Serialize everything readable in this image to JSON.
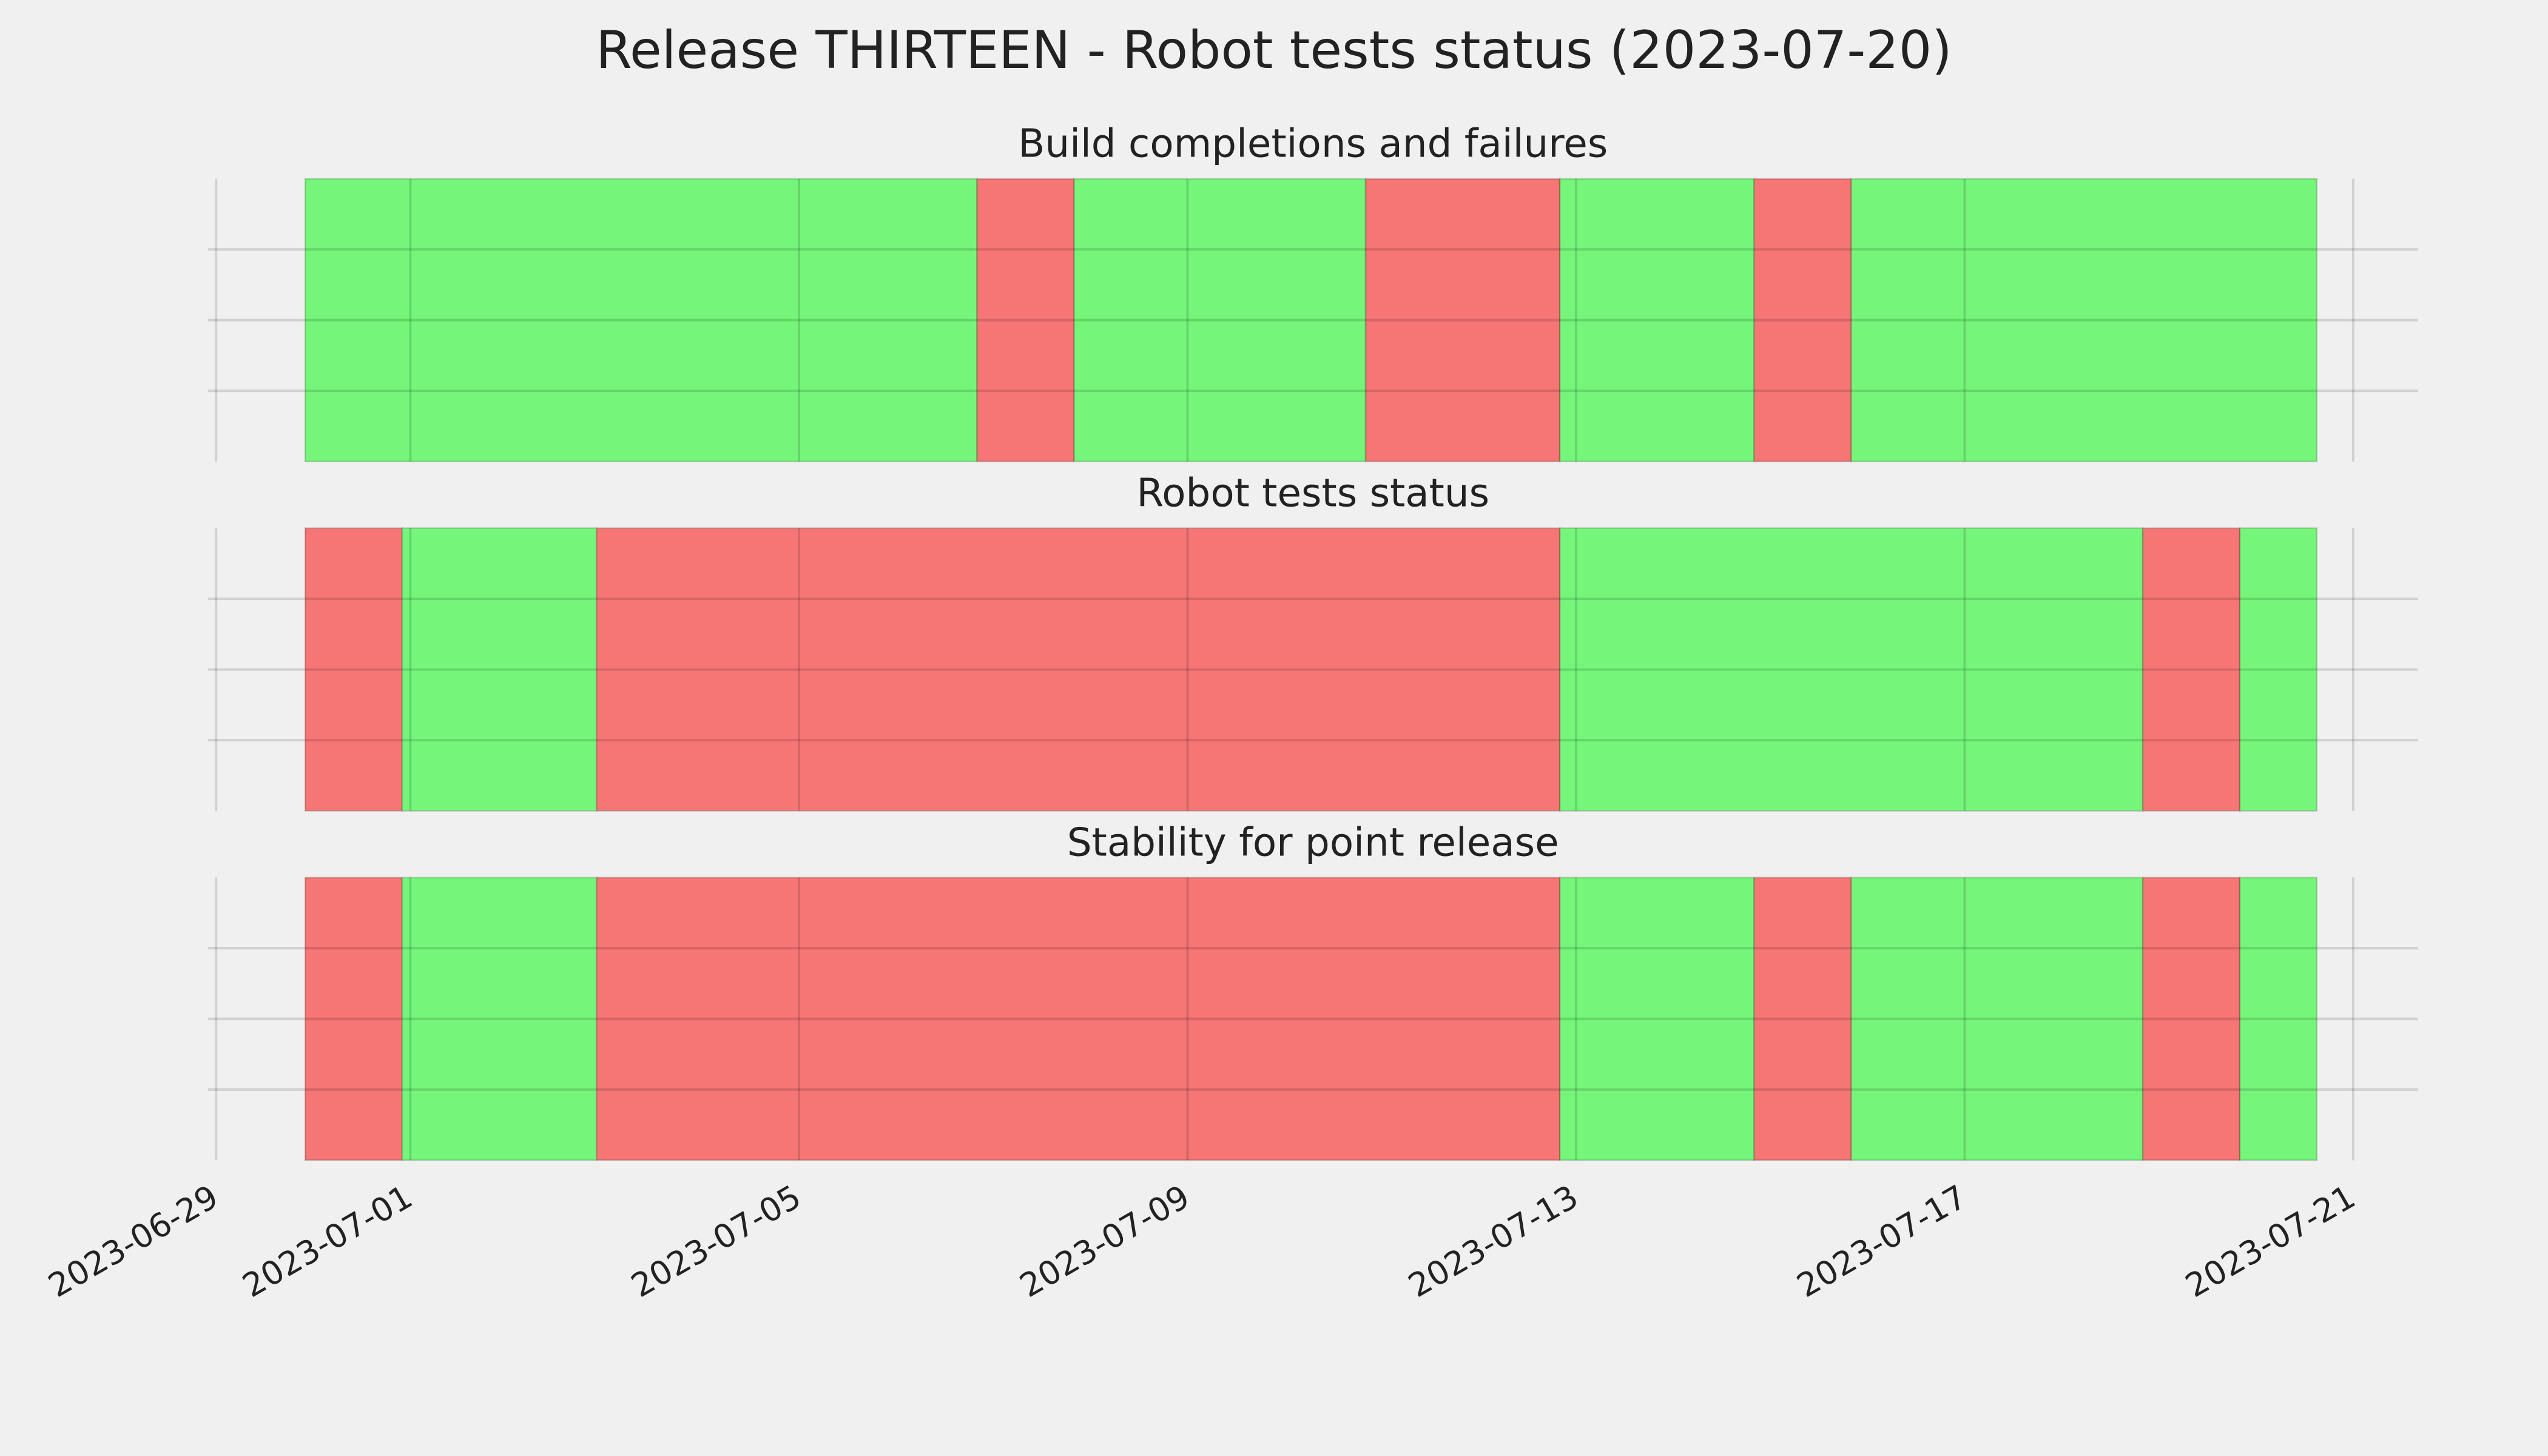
{
  "title": "Release THIRTEEN - Robot tests status (2023-07-20)",
  "chart_data": [
    {
      "type": "span",
      "title": "Build completions and failures",
      "xlim": [
        "2023-06-28T22:00",
        "2023-07-21T16:00"
      ],
      "xticks": [
        "2023-06-29",
        "2023-07-01",
        "2023-07-05",
        "2023-07-09",
        "2023-07-13",
        "2023-07-17",
        "2023-07-21"
      ],
      "ylim": [
        0,
        1
      ],
      "yticks": [
        0.25,
        0.5,
        0.75
      ],
      "grid": true,
      "spans": [
        {
          "start": "2023-06-29T22:00",
          "end": "2023-07-06T20:00",
          "color": "#75f67a"
        },
        {
          "start": "2023-07-06T20:00",
          "end": "2023-07-07T20:00",
          "color": "#f57674"
        },
        {
          "start": "2023-07-07T20:00",
          "end": "2023-07-10T20:00",
          "color": "#75f67a"
        },
        {
          "start": "2023-07-10T20:00",
          "end": "2023-07-12T20:00",
          "color": "#f57674"
        },
        {
          "start": "2023-07-12T20:00",
          "end": "2023-07-14T20:00",
          "color": "#75f67a"
        },
        {
          "start": "2023-07-14T20:00",
          "end": "2023-07-15T20:00",
          "color": "#f57674"
        },
        {
          "start": "2023-07-15T20:00",
          "end": "2023-07-20T15:00",
          "color": "#75f67a"
        }
      ]
    },
    {
      "type": "span",
      "title": "Robot tests status",
      "xlim": [
        "2023-06-28T22:00",
        "2023-07-21T16:00"
      ],
      "xticks": [
        "2023-06-29",
        "2023-07-01",
        "2023-07-05",
        "2023-07-09",
        "2023-07-13",
        "2023-07-17",
        "2023-07-21"
      ],
      "ylim": [
        0,
        1
      ],
      "yticks": [
        0.25,
        0.5,
        0.75
      ],
      "grid": true,
      "spans": [
        {
          "start": "2023-06-29T22:00",
          "end": "2023-06-30T22:00",
          "color": "#f57674"
        },
        {
          "start": "2023-06-30T22:00",
          "end": "2023-07-02T22:00",
          "color": "#75f67a"
        },
        {
          "start": "2023-07-02T22:00",
          "end": "2023-07-12T20:00",
          "color": "#f57674"
        },
        {
          "start": "2023-07-12T20:00",
          "end": "2023-07-18T20:00",
          "color": "#75f67a"
        },
        {
          "start": "2023-07-18T20:00",
          "end": "2023-07-19T20:00",
          "color": "#f57674"
        },
        {
          "start": "2023-07-19T20:00",
          "end": "2023-07-20T15:00",
          "color": "#75f67a"
        }
      ]
    },
    {
      "type": "span",
      "title": "Stability for point release",
      "xlim": [
        "2023-06-28T22:00",
        "2023-07-21T16:00"
      ],
      "xticks": [
        "2023-06-29",
        "2023-07-01",
        "2023-07-05",
        "2023-07-09",
        "2023-07-13",
        "2023-07-17",
        "2023-07-21"
      ],
      "ylim": [
        0,
        1
      ],
      "yticks": [
        0.25,
        0.5,
        0.75
      ],
      "grid": true,
      "spans": [
        {
          "start": "2023-06-29T22:00",
          "end": "2023-06-30T22:00",
          "color": "#f57674"
        },
        {
          "start": "2023-06-30T22:00",
          "end": "2023-07-02T22:00",
          "color": "#75f67a"
        },
        {
          "start": "2023-07-02T22:00",
          "end": "2023-07-12T20:00",
          "color": "#f57674"
        },
        {
          "start": "2023-07-12T20:00",
          "end": "2023-07-14T20:00",
          "color": "#75f67a"
        },
        {
          "start": "2023-07-14T20:00",
          "end": "2023-07-15T20:00",
          "color": "#f57674"
        },
        {
          "start": "2023-07-15T20:00",
          "end": "2023-07-18T20:00",
          "color": "#75f67a"
        },
        {
          "start": "2023-07-18T20:00",
          "end": "2023-07-19T20:00",
          "color": "#f57674"
        },
        {
          "start": "2023-07-19T20:00",
          "end": "2023-07-20T15:00",
          "color": "#75f67a"
        }
      ]
    }
  ]
}
